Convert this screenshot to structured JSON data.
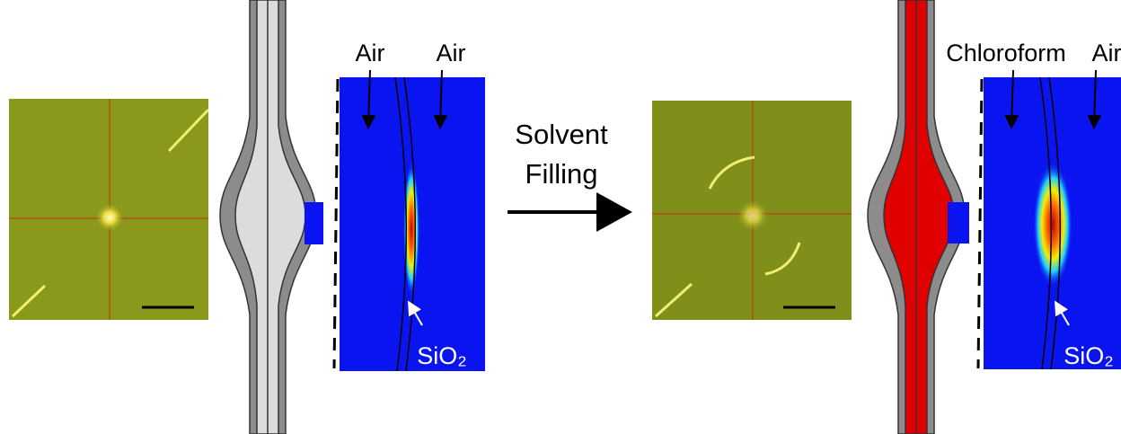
{
  "before": {
    "labels": [
      "Air",
      "Air"
    ],
    "substrate": "SiO₂"
  },
  "process": {
    "line1": "Solvent",
    "line2": "Filling"
  },
  "after": {
    "labels": [
      "Chloroform",
      "Air"
    ],
    "substrate": "SiO₂"
  }
}
